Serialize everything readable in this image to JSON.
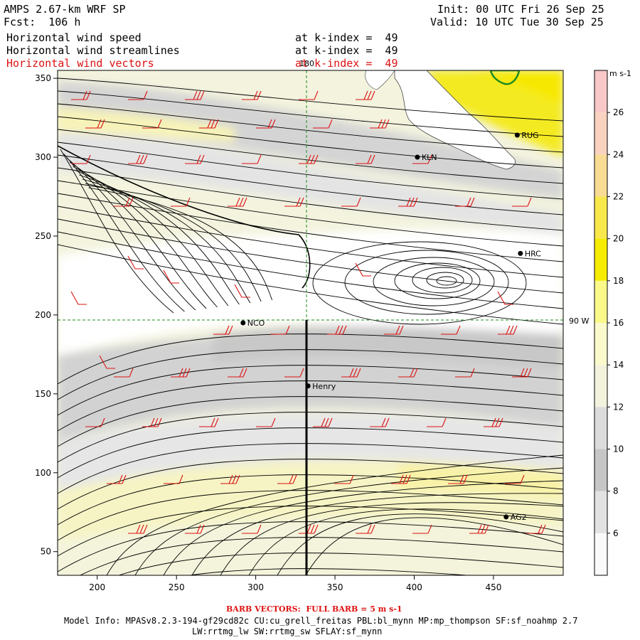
{
  "header": {
    "model": "AMPS 2.67-km WRF SP",
    "forecast": "Fcst:  106 h",
    "init": "Init: 00 UTC Fri 26 Sep 25",
    "valid": "Valid: 10 UTC Tue 30 Sep 25"
  },
  "fields": [
    {
      "name": "Horizontal wind speed",
      "level": "at k-index =  49",
      "color": "#000000"
    },
    {
      "name": "Horizontal wind streamlines",
      "level": "at k-index =  49",
      "color": "#000000"
    },
    {
      "name": "Horizontal wind vectors",
      "level": "at k-index =  49",
      "color": "#dd1111"
    }
  ],
  "map": {
    "x_ticks": [
      "200",
      "250",
      "300",
      "350",
      "400",
      "450"
    ],
    "y_ticks": [
      "350",
      "300",
      "250",
      "200",
      "150",
      "100",
      "50"
    ],
    "meridian_label": "180",
    "parallel_label": "90 W",
    "stations": [
      {
        "id": "RUG",
        "x": 465,
        "y": 314
      },
      {
        "id": "KLN",
        "x": 402,
        "y": 300
      },
      {
        "id": "HRC",
        "x": 467,
        "y": 239
      },
      {
        "id": "NCO",
        "x": 292,
        "y": 195
      },
      {
        "id": "Henry",
        "x": 333,
        "y": 155
      },
      {
        "id": "AG2",
        "x": 458,
        "y": 72
      }
    ]
  },
  "colorbar": {
    "units": "m s-1",
    "labels": [
      "26",
      "24",
      "22",
      "20",
      "18",
      "16",
      "14",
      "12",
      "10",
      "8",
      "6"
    ],
    "colors": [
      "#f8c8c8",
      "#fad2c0",
      "#f9dc94",
      "#f8e84c",
      "#f5ec00",
      "#fafa8a",
      "#fafacc",
      "#f2f2dd",
      "#dcdcdc",
      "#c6c6c6",
      "#e2e2e2",
      "#fafafa"
    ]
  },
  "footer": {
    "barb_note": "BARB VECTORS:  FULL BARB = 5 m s-1",
    "model_info": "Model Info: MPASv8.2.3-194-gf29cd82c CU:cu_grell_freitas PBL:bl_mynn MP:mp_thompson SF:sf_noahmp 2.7",
    "model_info_2": "LW:rrtmg_lw SW:rrtmg_sw SFLAY:sf_mynn"
  }
}
